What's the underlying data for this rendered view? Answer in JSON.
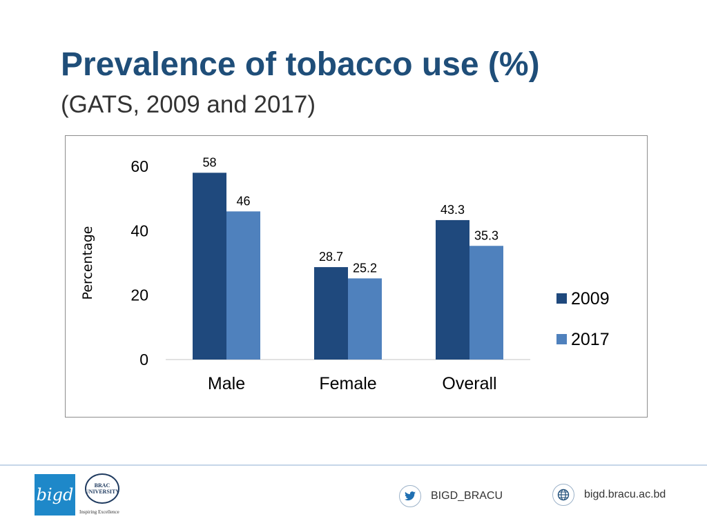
{
  "slide": {
    "title": "Prevalence of tobacco use (%)",
    "subtitle": "(GATS, 2009 and 2017)"
  },
  "chart_data": {
    "type": "bar",
    "categories": [
      "Male",
      "Female",
      "Overall"
    ],
    "series": [
      {
        "name": "2009",
        "values": [
          58,
          28.7,
          43.3
        ],
        "color": "#1f497d"
      },
      {
        "name": "2017",
        "values": [
          46,
          25.2,
          35.3
        ],
        "color": "#4f81bd"
      }
    ],
    "data_labels": [
      [
        "58",
        "28.7",
        "43.3"
      ],
      [
        "46",
        "25.2",
        "35.3"
      ]
    ],
    "ylabel": "Percentage",
    "ylim": [
      0,
      60
    ],
    "yticks": [
      0,
      20,
      40,
      60
    ],
    "legend_position": "right",
    "grid": false
  },
  "footer": {
    "logo_text": "bigd",
    "brac_seal_line1": "BRAC",
    "brac_seal_line2": "UNIVERSITY",
    "brac_tagline": "Inspiring Excellence",
    "twitter_handle": "BIGD_BRACU",
    "website": "bigd.bracu.ac.bd",
    "twitter_icon": "twitter-icon",
    "globe_icon": "globe-icon"
  }
}
